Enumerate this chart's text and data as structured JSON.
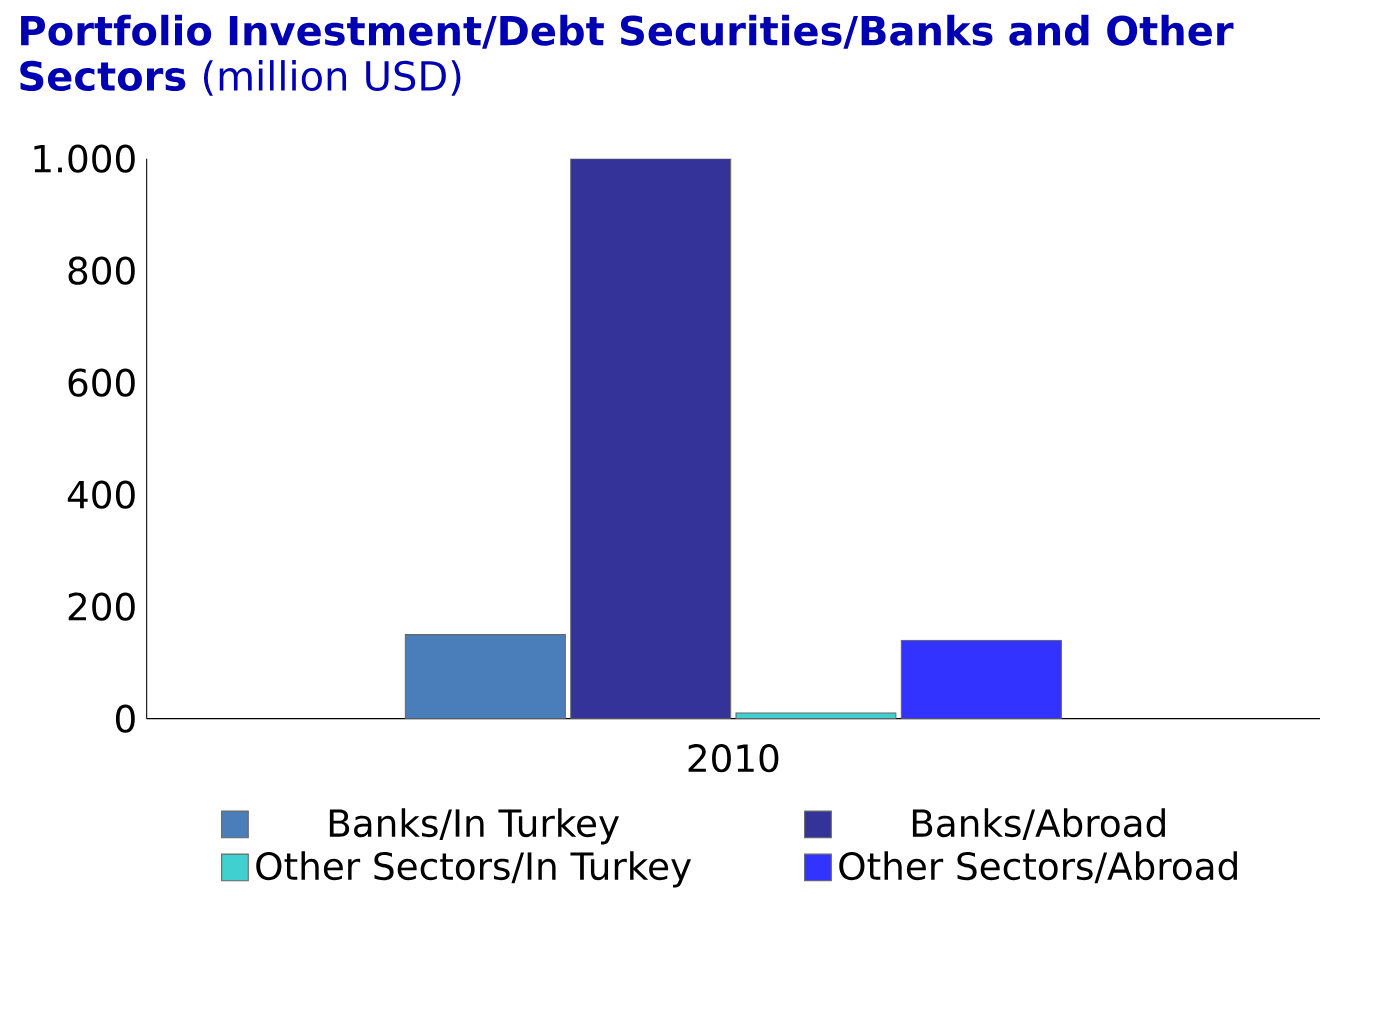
{
  "chart_data": {
    "type": "bar",
    "title": "**Portfolio Investment/Debt Securities/Banks and Other Sectors** (million USD)",
    "categories": [
      "2010"
    ],
    "series": [
      {
        "name": "Banks/In Turkey",
        "color": "#4a7ebb",
        "values": [
          150
        ]
      },
      {
        "name": "Banks/Abroad",
        "color": "#333399",
        "values": [
          1000
        ]
      },
      {
        "name": "Other Sectors/In Turkey",
        "color": "#40d0d0",
        "values": [
          10
        ]
      },
      {
        "name": "Other Sectors/Abroad",
        "color": "#3333ff",
        "values": [
          140
        ]
      }
    ],
    "ylim": [
      0,
      1000
    ],
    "yticks": [
      0,
      200,
      400,
      600,
      800,
      {
        "value": 1000,
        "label": "1.000"
      }
    ],
    "legend": "bottom",
    "grid": false
  }
}
